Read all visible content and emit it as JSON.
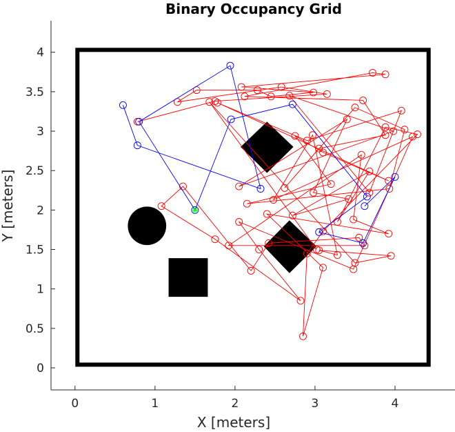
{
  "chart_data": {
    "type": "scatter",
    "title": "Binary Occupancy Grid",
    "xlabel": "X [meters]",
    "ylabel": "Y [meters]",
    "xlim": [
      -0.3,
      4.75
    ],
    "ylim": [
      -0.28,
      4.4
    ],
    "xticks": [
      0,
      1,
      2,
      3,
      4
    ],
    "yticks": [
      0,
      0.5,
      1,
      1.5,
      2,
      2.5,
      3,
      3.5,
      4
    ],
    "xtick_labels": [
      "0",
      "1",
      "2",
      "3",
      "4"
    ],
    "ytick_labels": [
      "0",
      "0.5",
      "1",
      "1.5",
      "2",
      "2.5",
      "3",
      "3.5",
      "4"
    ],
    "grid": false,
    "colors": {
      "boundary": "#000000",
      "obstacle": "#000000",
      "red_series": "#ff0000",
      "blue_series": "#0000ff",
      "start_marker": "#00ff00"
    },
    "boundary": {
      "x0": 0.03,
      "y0": 0.04,
      "x1": 4.42,
      "y1": 4.03
    },
    "obstacles": [
      {
        "shape": "circle",
        "cx": 0.9,
        "cy": 1.8,
        "r": 0.24
      },
      {
        "shape": "rect",
        "x0": 1.17,
        "y0": 0.9,
        "x1": 1.66,
        "y1": 1.39
      },
      {
        "shape": "polygon",
        "points": [
          [
            2.4,
            3.12
          ],
          [
            2.73,
            2.8
          ],
          [
            2.4,
            2.47
          ],
          [
            2.07,
            2.8
          ]
        ]
      },
      {
        "shape": "polygon",
        "points": [
          [
            2.68,
            1.87
          ],
          [
            3.02,
            1.54
          ],
          [
            2.68,
            1.2
          ],
          [
            2.36,
            1.54
          ]
        ]
      }
    ],
    "start_point": {
      "x": 1.5,
      "y": 2.0
    },
    "series": [
      {
        "marker": "circle",
        "x": [
          0.78,
          1.75,
          3.15,
          2.58,
          1.28,
          1.52,
          2.28,
          2.45,
          2.98,
          2.08,
          3.88,
          3.72,
          2.12,
          3.6,
          3.88,
          3.05,
          2.62,
          3.5,
          4.12,
          3.93,
          2.15,
          3.2,
          2.75,
          3.1,
          3.92,
          1.78,
          2.9,
          4.08,
          3.68,
          2.68,
          3.98,
          2.05,
          3.4,
          2.98,
          3.42,
          2.72,
          3.68,
          3.28,
          3.88,
          4.28,
          3.1,
          2.9,
          2.85,
          3.1,
          2.4,
          3.92,
          3.48,
          3.58,
          1.92,
          3.62,
          3.55,
          2.42,
          2.2,
          1.35,
          1.08,
          1.75,
          2.82,
          2.3,
          2.05,
          3.48,
          4.22,
          2.48,
          2.97,
          3.28,
          3.05,
          3.95,
          3.5,
          1.68,
          3.02
        ],
        "y": [
          3.12,
          3.38,
          3.47,
          3.56,
          3.37,
          3.52,
          3.52,
          3.44,
          3.49,
          3.56,
          3.72,
          3.74,
          3.44,
          3.39,
          2.95,
          2.78,
          2.28,
          3.3,
          3.02,
          2.27,
          2.08,
          2.33,
          2.94,
          2.73,
          2.37,
          3.36,
          2.88,
          3.26,
          2.22,
          3.45,
          3.0,
          2.3,
          3.15,
          2.22,
          2.14,
          1.93,
          2.49,
          1.85,
          3.05,
          2.96,
          1.73,
          1.45,
          0.4,
          1.27,
          1.95,
          1.7,
          1.88,
          2.7,
          1.55,
          1.55,
          1.65,
          1.58,
          1.23,
          2.3,
          2.05,
          1.63,
          0.85,
          1.5,
          1.85,
          1.25,
          2.93,
          2.13,
          2.95,
          1.43,
          1.49,
          1.42,
          1.33,
          3.37,
          1.5
        ]
      },
      {
        "marker": "circle",
        "x": [
          0.6,
          0.78,
          2.32,
          1.94,
          0.8,
          1.5,
          1.95,
          2.72,
          3.65,
          3.05,
          3.6,
          4.0,
          3.62
        ],
        "y": [
          3.33,
          2.82,
          2.27,
          3.83,
          3.12,
          2.0,
          3.15,
          3.34,
          2.17,
          1.72,
          1.58,
          2.42,
          2.05
        ]
      }
    ]
  }
}
